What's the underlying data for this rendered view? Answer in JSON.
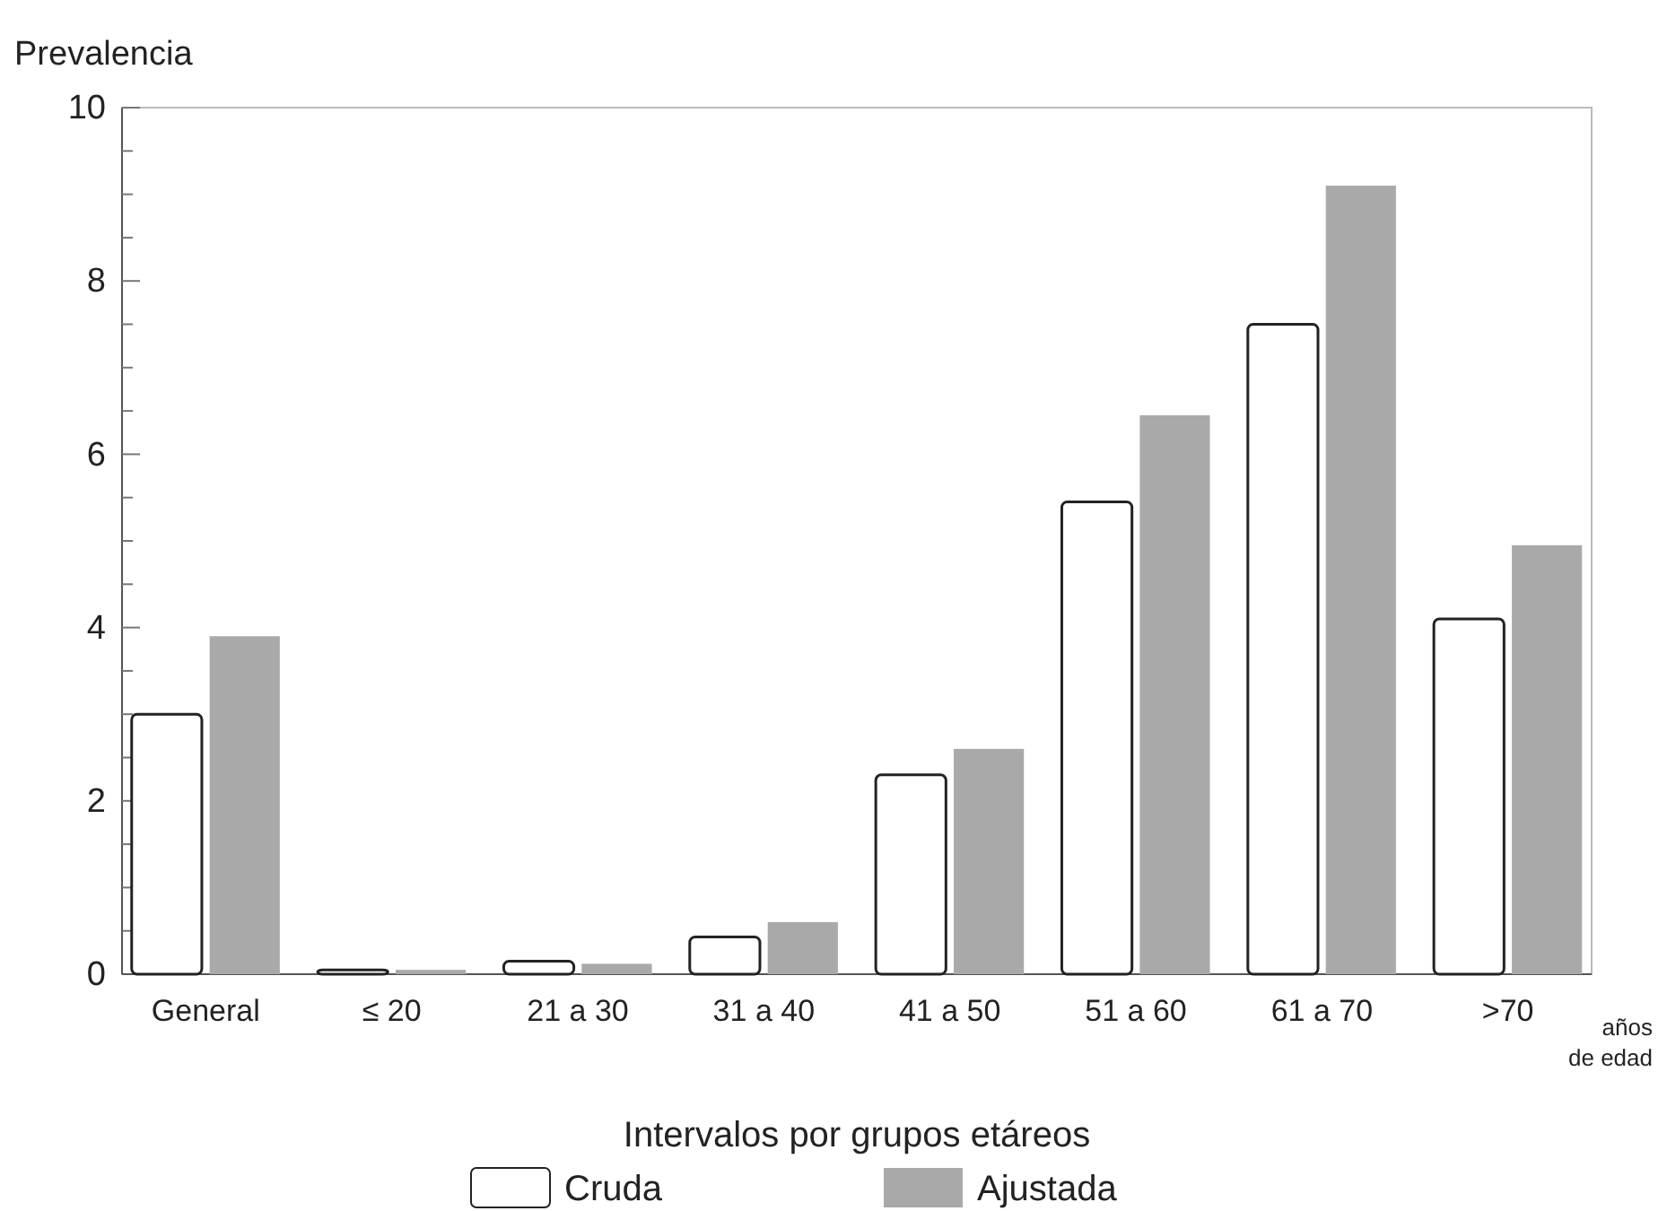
{
  "chart_data": {
    "type": "bar",
    "xlabel": "Intervalos por grupos etáreos",
    "ylabel": "Prevalencia",
    "categories": [
      "General",
      "≤ 20",
      "21 a 30",
      "31 a 40",
      "41 a 50",
      "51 a 60",
      "61 a 70",
      ">70"
    ],
    "series": [
      {
        "name": "Cruda",
        "color": "#ffffff",
        "values": [
          3.0,
          0.05,
          0.15,
          0.43,
          2.3,
          5.45,
          7.5,
          4.1
        ]
      },
      {
        "name": "Ajustada",
        "color": "#a9a9a9",
        "values": [
          3.9,
          0.05,
          0.12,
          0.6,
          2.6,
          6.45,
          9.1,
          4.95
        ]
      }
    ],
    "ylim": [
      0,
      10
    ],
    "yticks": [
      0,
      {
        "value": 0.5,
        "label": null
      },
      2,
      {
        "value": 1,
        "label": null
      },
      {
        "value": 1.5,
        "label": null
      },
      {
        "value": 2.5,
        "label": null
      },
      {
        "value": 3,
        "label": null
      },
      {
        "value": 3.5,
        "label": null
      },
      4,
      {
        "value": 4.5,
        "label": null
      },
      {
        "value": 5,
        "label": null
      },
      {
        "value": 5.5,
        "label": null
      },
      6,
      {
        "value": 6.5,
        "label": null
      },
      {
        "value": 7,
        "label": null
      },
      {
        "value": 7.5,
        "label": null
      },
      8,
      {
        "value": 8.5,
        "label": null
      },
      {
        "value": 9,
        "label": null
      },
      {
        "value": 9.5,
        "label": null
      },
      10
    ],
    "annotations": [
      "años de edad"
    ],
    "grid": false,
    "legend": "bottom"
  }
}
